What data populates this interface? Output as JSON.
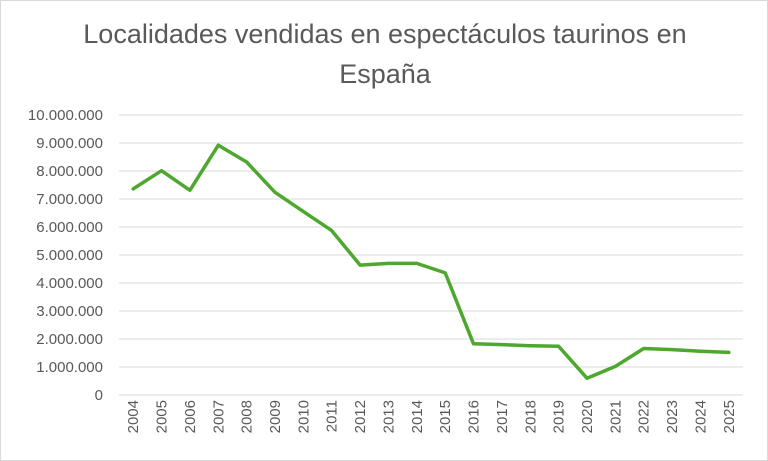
{
  "chart_data": {
    "type": "line",
    "title_line1": "Localidades vendidas en espectáculos taurinos en",
    "title_line2": "España",
    "xlabel": "",
    "ylabel": "",
    "categories": [
      "2004",
      "2005",
      "2006",
      "2007",
      "2008",
      "2009",
      "2010",
      "2011",
      "2012",
      "2013",
      "2014",
      "2015",
      "2016",
      "2017",
      "2018",
      "2019",
      "2020",
      "2021",
      "2022",
      "2023",
      "2024",
      "2025"
    ],
    "series": [
      {
        "values": [
          7360000,
          8010000,
          7310000,
          8920000,
          8320000,
          7240000,
          6550000,
          5870000,
          4640000,
          4700000,
          4700000,
          4360000,
          1830000,
          1800000,
          1760000,
          1740000,
          600000,
          1020000,
          1660000,
          1620000,
          1560000,
          1520000
        ]
      }
    ],
    "ylim": [
      0,
      10000000
    ],
    "yticks": [
      0,
      1000000,
      2000000,
      3000000,
      4000000,
      5000000,
      6000000,
      7000000,
      8000000,
      9000000,
      10000000
    ],
    "ytick_labels": [
      "0",
      "1.000.000",
      "2.000.000",
      "3.000.000",
      "4.000.000",
      "5.000.000",
      "6.000.000",
      "7.000.000",
      "8.000.000",
      "9.000.000",
      "10.000.000"
    ],
    "grid": true,
    "legend": "none",
    "colors": {
      "line": "#4ea72e",
      "grid": "#d9d9d9",
      "text": "#595959"
    }
  }
}
